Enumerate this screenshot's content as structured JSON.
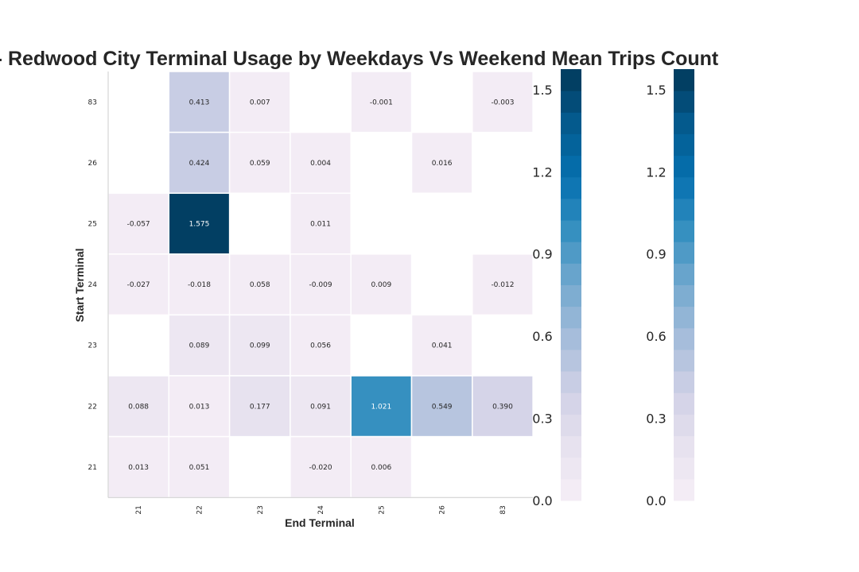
{
  "chart_data": {
    "type": "heatmap",
    "title": "r - Redwood City Terminal Usage by Weekdays Vs Weekend Mean Trips Count",
    "xlabel": "End Terminal",
    "ylabel": "Start Terminal",
    "x_categories": [
      "21",
      "22",
      "23",
      "24",
      "25",
      "26",
      "83"
    ],
    "y_categories": [
      "83",
      "26",
      "25",
      "24",
      "23",
      "22",
      "21"
    ],
    "values": [
      [
        null,
        0.413,
        0.007,
        null,
        -0.001,
        null,
        -0.003
      ],
      [
        null,
        0.424,
        0.059,
        0.004,
        null,
        0.016,
        null
      ],
      [
        -0.057,
        1.575,
        null,
        0.011,
        null,
        null,
        null
      ],
      [
        -0.027,
        -0.018,
        0.058,
        -0.009,
        0.009,
        null,
        -0.012
      ],
      [
        null,
        0.089,
        0.099,
        0.056,
        null,
        0.041,
        null
      ],
      [
        0.088,
        0.013,
        0.177,
        0.091,
        1.021,
        0.549,
        0.39
      ],
      [
        0.013,
        0.051,
        null,
        -0.02,
        0.006,
        null,
        null
      ]
    ],
    "labels": [
      [
        null,
        "0.413",
        "0.007",
        null,
        "-0.001",
        null,
        "-0.003"
      ],
      [
        null,
        "0.424",
        "0.059",
        "0.004",
        null,
        "0.016",
        null
      ],
      [
        "-0.057",
        "1.575",
        null,
        "0.011",
        null,
        null,
        null
      ],
      [
        "-0.027",
        "-0.018",
        "0.058",
        "-0.009",
        "0.009",
        null,
        "-0.012"
      ],
      [
        null,
        "0.089",
        "0.099",
        "0.056",
        null,
        "0.041",
        null
      ],
      [
        "0.088",
        "0.013",
        "0.177",
        "0.091",
        "1.021",
        "0.549",
        "0.390"
      ],
      [
        "0.013",
        "0.051",
        null,
        "-0.020",
        "0.006",
        null,
        null
      ]
    ],
    "colorbar": {
      "ticks": [
        "0.0",
        "0.3",
        "0.6",
        "0.9",
        "1.2",
        "1.5"
      ],
      "tick_values": [
        0.0,
        0.3,
        0.6,
        0.9,
        1.2,
        1.5
      ],
      "range": [
        0.0,
        1.575
      ],
      "bands": 20
    },
    "colormap_stops": [
      "#f6eff7",
      "#e7e2ef",
      "#d0d1e6",
      "#a6bddb",
      "#74a9cf",
      "#3690c0",
      "#0570b0",
      "#045a8d",
      "#023858"
    ],
    "grid": false
  }
}
